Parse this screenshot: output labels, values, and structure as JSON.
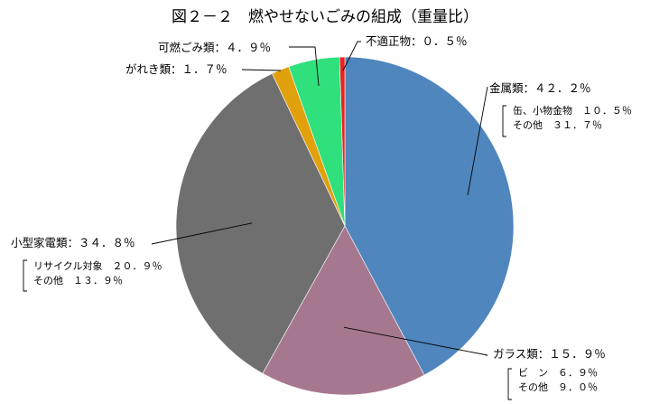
{
  "chart_data": {
    "type": "pie",
    "title": "図２－２　燃やせないごみの組成（重量比）",
    "slices": [
      {
        "name": "金属類",
        "value": 42.2,
        "label": "金属類：４２．２％",
        "color": "#4f86bd",
        "breakdown": [
          {
            "text": "缶、小物金物　１０．５％"
          },
          {
            "text": "その他　３１．７％"
          }
        ]
      },
      {
        "name": "ガラス類",
        "value": 15.9,
        "label": "ガラス類：１５．９％",
        "color": "#a6788f",
        "breakdown": [
          {
            "text": "ビ　ン　６．９％"
          },
          {
            "text": "その他　９．０％"
          }
        ]
      },
      {
        "name": "小型家電類",
        "value": 34.8,
        "label": "小型家電類：３４．８％",
        "color": "#6f6f6f",
        "breakdown": [
          {
            "text": "リサイクル対象　２０．９％"
          },
          {
            "text": "その他　１３．９％"
          }
        ]
      },
      {
        "name": "がれき類",
        "value": 1.7,
        "label": "がれき類：１．７％",
        "color": "#e0a10c",
        "breakdown": []
      },
      {
        "name": "可燃ごみ類",
        "value": 4.9,
        "label": "可燃ごみ類：４．９％",
        "color": "#2fe07c",
        "breakdown": []
      },
      {
        "name": "不適正物",
        "value": 0.5,
        "label": "不適正物：０．５％",
        "color": "#e8231f",
        "breakdown": []
      }
    ]
  }
}
